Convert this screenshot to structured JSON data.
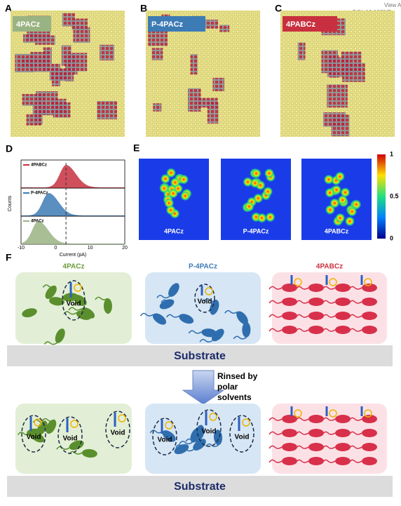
{
  "header": {
    "view": "View A",
    "doi": "DOI: 10.1039/D"
  },
  "panels": [
    {
      "letter": "A",
      "label": "4PACz",
      "color": "#9ab383"
    },
    {
      "letter": "B",
      "label": "P-4PACz",
      "color": "#3d7bb5"
    },
    {
      "letter": "C",
      "label": "4PABCz",
      "color": "#c8303f"
    }
  ],
  "panel_d": {
    "letter": "D",
    "ylabel": "Counts",
    "xlabel": "Current (pA)",
    "xticks": [
      -10,
      0,
      10,
      20
    ],
    "traces": [
      {
        "name": "4PABCz",
        "color": "#c8303f"
      },
      {
        "name": "P-4PACz",
        "color": "#3d7bb5"
      },
      {
        "name": "4PACz",
        "color": "#9ab383"
      }
    ]
  },
  "panel_e": {
    "letter": "E",
    "maps": [
      "4PACz",
      "P-4PACz",
      "4PABCz"
    ],
    "colorbar_ticks": [
      1,
      0.5,
      0
    ]
  },
  "panel_f": {
    "letter": "F",
    "columns": [
      {
        "name": "4PACz",
        "color": "#6a9a3a"
      },
      {
        "name": "P-4PACz",
        "color": "#3d7bb5"
      },
      {
        "name": "4PABCz",
        "color": "#c8303f"
      }
    ],
    "void": "Void",
    "substrate": "Substrate",
    "arrow_text": [
      "Rinsed by",
      "polar",
      "solvents"
    ]
  }
}
